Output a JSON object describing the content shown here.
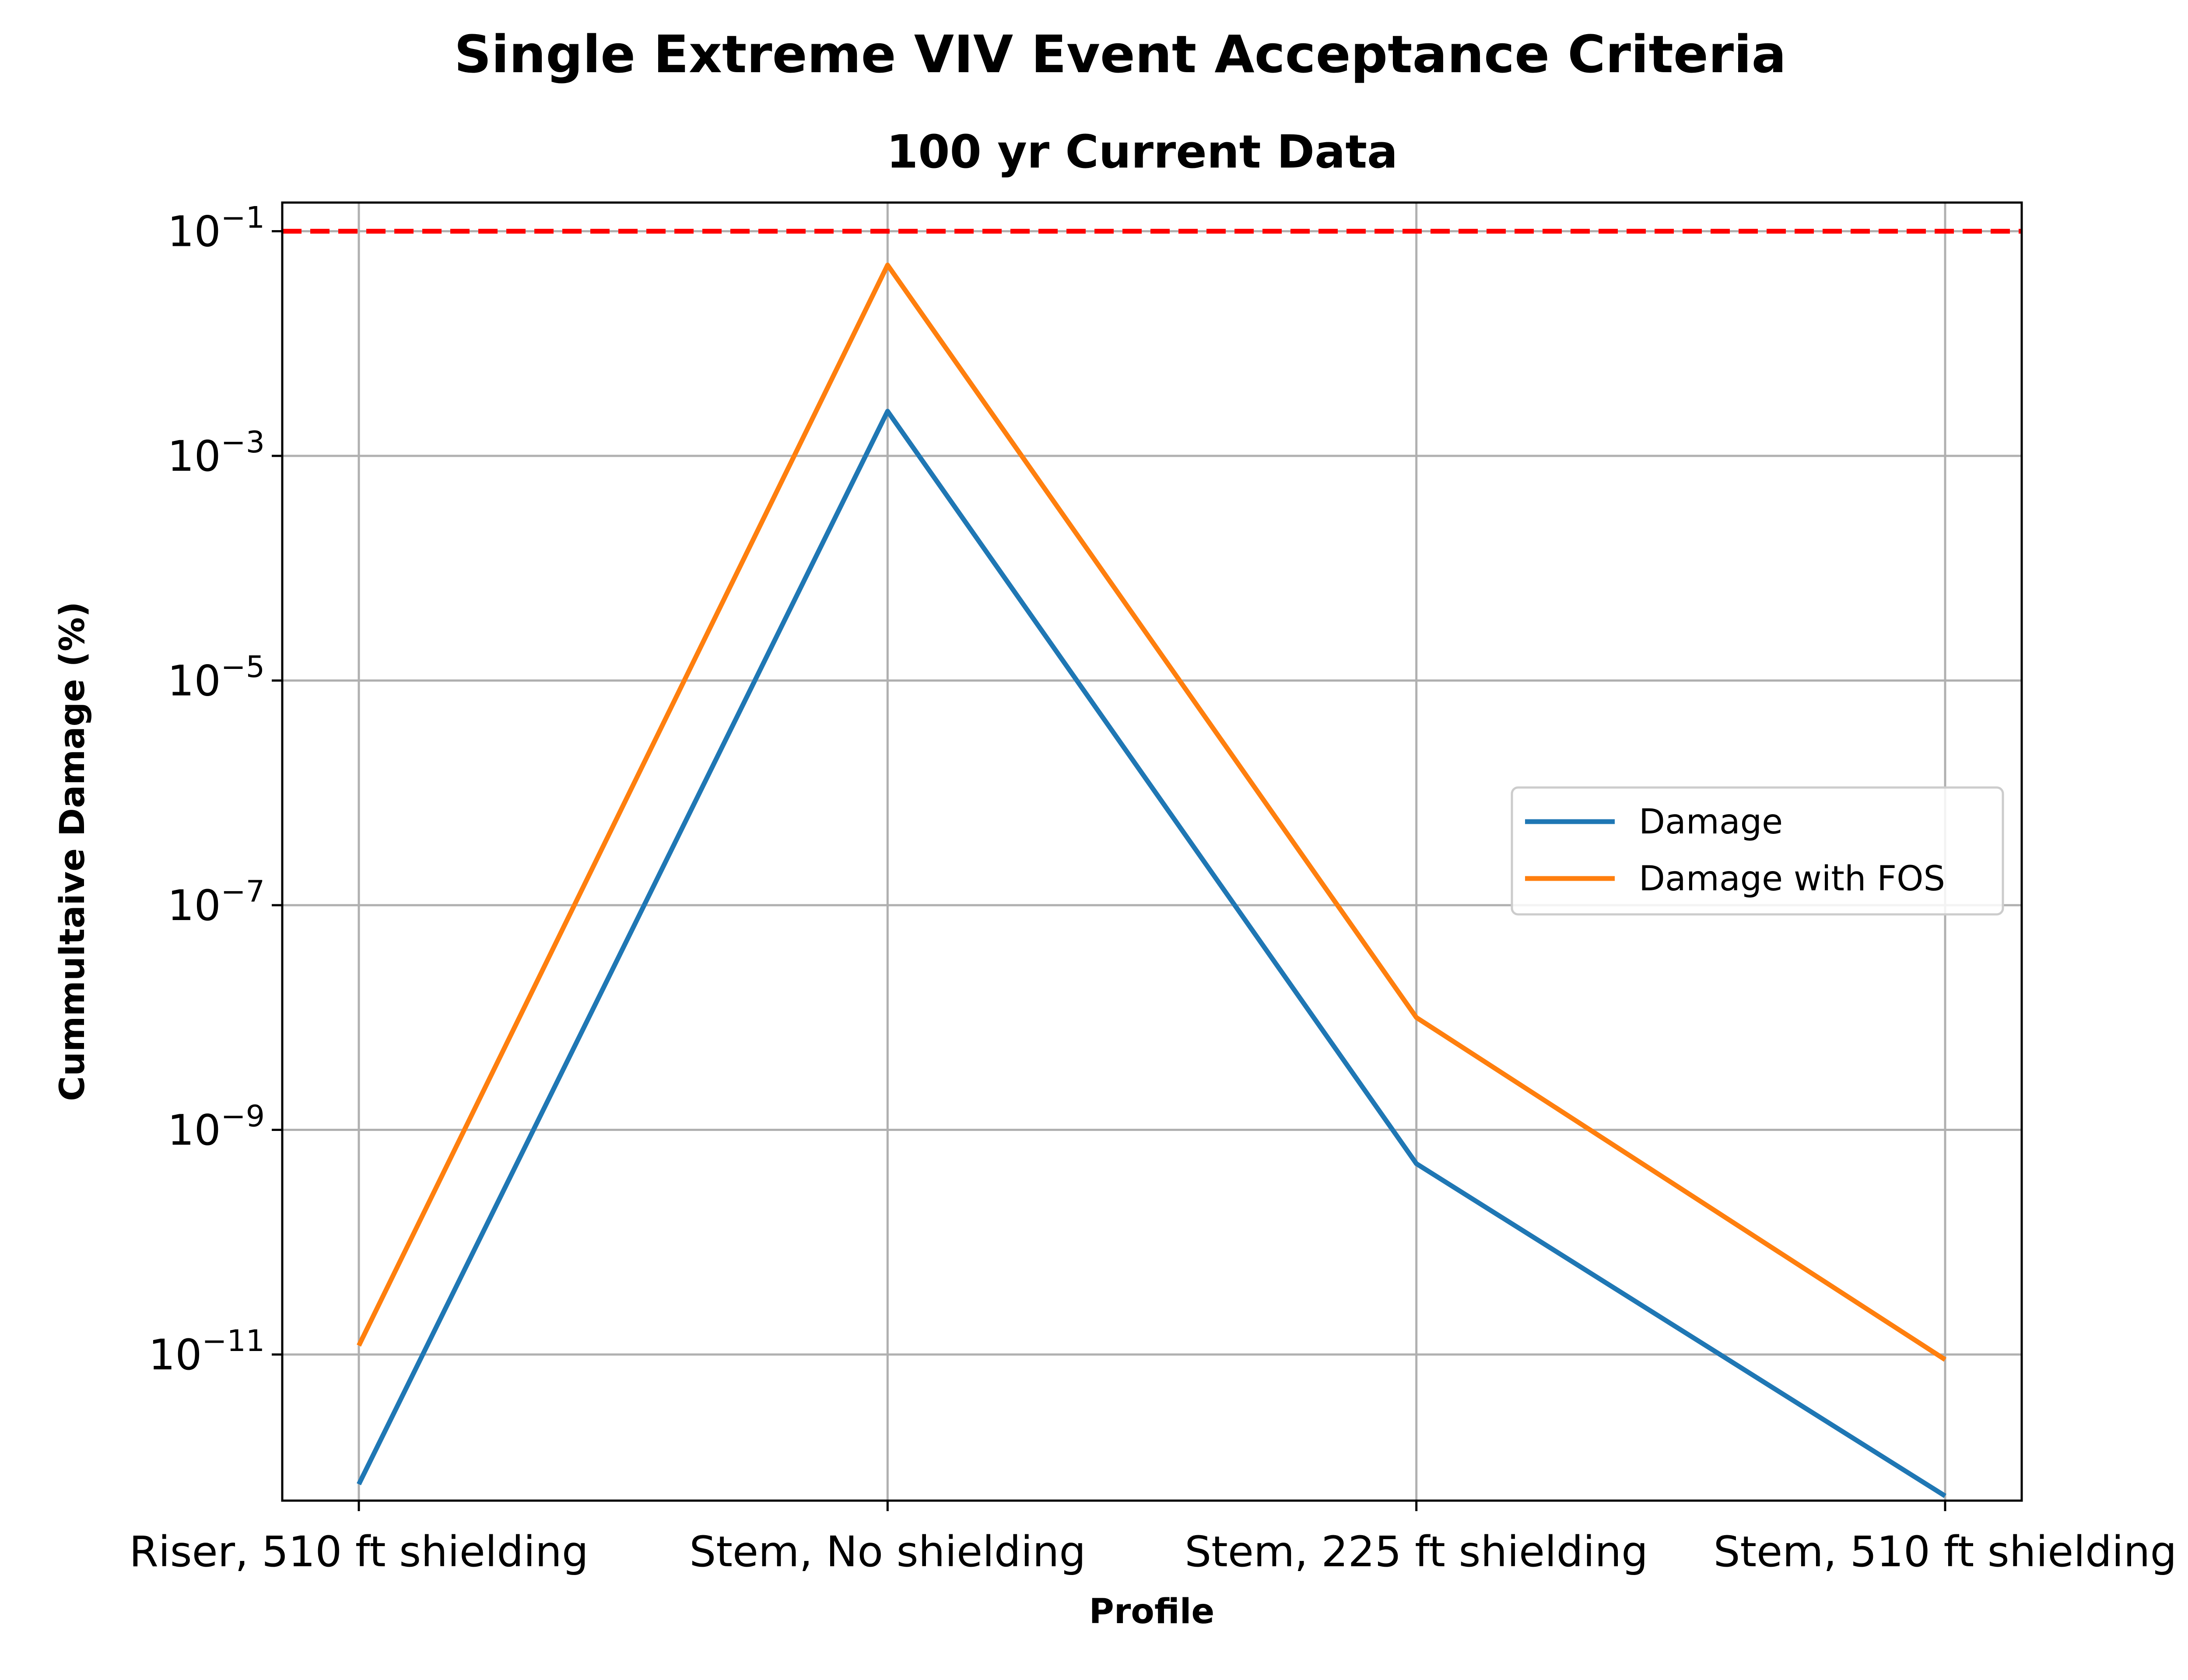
{
  "chart_data": {
    "type": "line",
    "title": "Single Extreme VIV Event Acceptance Criteria",
    "subtitle": "100 yr Current Data",
    "xlabel": "Profile",
    "ylabel": "Cummultaive Damage (%)",
    "categories": [
      "Riser, 510 ft shielding",
      "Stem, No shielding",
      "Stem, 225 ft shielding",
      "Stem, 510 ft shielding"
    ],
    "y_scale": "log",
    "ylim": [
      5e-13,
      0.18
    ],
    "y_ticks": [
      1e-11,
      1e-09,
      1e-07,
      1e-05,
      0.001,
      0.1
    ],
    "y_tick_labels": [
      {
        "base": "10",
        "exp": "−11"
      },
      {
        "base": "10",
        "exp": "−9"
      },
      {
        "base": "10",
        "exp": "−7"
      },
      {
        "base": "10",
        "exp": "−5"
      },
      {
        "base": "10",
        "exp": "−3"
      },
      {
        "base": "10",
        "exp": "−1"
      }
    ],
    "grid": true,
    "legend_position": "center-right",
    "series": [
      {
        "name": "Damage",
        "color": "#1f77b4",
        "values": [
          7e-13,
          0.0025,
          5e-10,
          5.5e-13
        ]
      },
      {
        "name": "Damage with FOS",
        "color": "#ff7f0e",
        "values": [
          1.2e-11,
          0.05,
          1e-08,
          9e-12
        ]
      }
    ],
    "threshold": {
      "value": 0.1,
      "color": "#ff0000",
      "style": "dashed"
    }
  }
}
